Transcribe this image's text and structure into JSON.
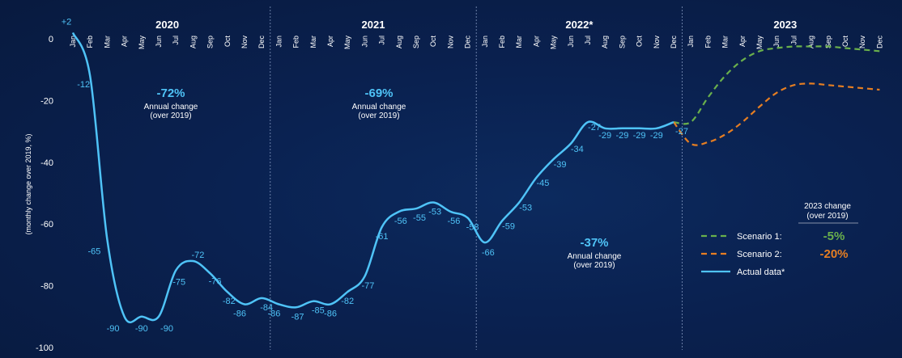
{
  "chart_data": {
    "type": "line",
    "ylabel": "(monthly change over 2019, %)",
    "ylim": [
      -100,
      5
    ],
    "yticks": [
      0,
      -20,
      -40,
      -60,
      -80,
      -100
    ],
    "years": [
      "2020",
      "2021",
      "2022*",
      "2023"
    ],
    "months": [
      "Jan",
      "Feb",
      "Mar",
      "Apr",
      "May",
      "Jun",
      "Jul",
      "Aug",
      "Sep",
      "Oct",
      "Nov",
      "Dec"
    ],
    "annotations": [
      {
        "value": "-72%",
        "text1": "Annual change",
        "text2": "(over 2019)"
      },
      {
        "value": "-69%",
        "text1": "Annual change",
        "text2": "(over 2019)"
      },
      {
        "value": "-37%",
        "text1": "Annual change",
        "text2": "(over 2019)"
      }
    ],
    "series": [
      {
        "name": "Actual data*",
        "color": "#4fc3f7",
        "values": [
          2,
          -12,
          -65,
          -90,
          -90,
          -90,
          -75,
          -72,
          -76,
          -82,
          -86,
          -84,
          -86,
          -87,
          -85,
          -86,
          -82,
          -77,
          -61,
          -56,
          -55,
          -53,
          -56,
          -58,
          -66,
          -59,
          -53,
          -45,
          -39,
          -34,
          -27,
          -29,
          -29,
          -29,
          -29,
          -27
        ],
        "labels": [
          "+2",
          "-12",
          "-65",
          "-90",
          "-90",
          "-90",
          "-75",
          "-72",
          "-76",
          "-82",
          "-86",
          "-84",
          "-86",
          "-87",
          "-85",
          "-86",
          "-82",
          "-77",
          "-61",
          "-56",
          "-55",
          "-53",
          "-56",
          "-58",
          "-66",
          "-59",
          "-53",
          "-45",
          "-39",
          "-34",
          "-27",
          "-29",
          "-29",
          "-29",
          "-29",
          "-27"
        ]
      },
      {
        "name": "Scenario 1:",
        "color": "#6ab04c",
        "dash": true,
        "annual_change": "-5%",
        "values": [
          -27,
          -19,
          -12,
          -7,
          -4,
          -3,
          -2.5,
          -2.5,
          -2.5,
          -3,
          -3.5,
          -4
        ]
      },
      {
        "name": "Scenario 2:",
        "color": "#e67e22",
        "dash": true,
        "annual_change": "-20%",
        "values": [
          -34,
          -33.5,
          -31,
          -27,
          -22,
          -17.5,
          -15,
          -14.5,
          -15,
          -15.5,
          -16,
          -16.5
        ]
      }
    ],
    "legend": {
      "header1": "2023 change",
      "header2": "(over 2019)",
      "placement": "right"
    }
  }
}
